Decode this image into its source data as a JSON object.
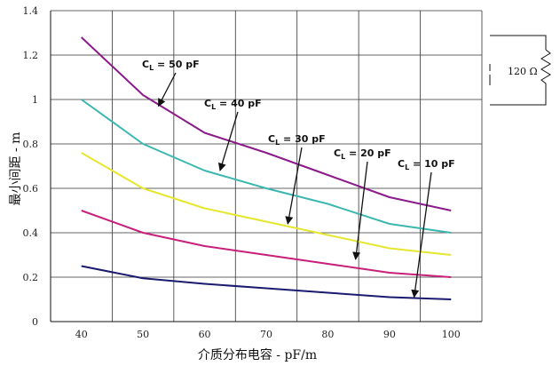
{
  "chart_data": {
    "type": "line",
    "title": "",
    "xlabel": "介质分布电容 - pF/m",
    "ylabel": "最小间距 - m",
    "x": [
      40,
      50,
      60,
      70,
      80,
      90,
      100
    ],
    "x_ticks": [
      40,
      50,
      60,
      70,
      80,
      90,
      100
    ],
    "y_ticks": [
      "0",
      "0.2",
      "0.4",
      "0.6",
      "0.8",
      "1",
      "1.2",
      "1.4"
    ],
    "xlim": [
      35,
      105
    ],
    "ylim": [
      0,
      1.4
    ],
    "grid": true,
    "series": [
      {
        "name": "50 pF",
        "color": "#8b1a8b",
        "values": [
          1.28,
          1.02,
          0.85,
          0.76,
          0.66,
          0.56,
          0.5
        ]
      },
      {
        "name": "40 pF",
        "color": "#3bb7b0",
        "values": [
          1.0,
          0.8,
          0.68,
          0.6,
          0.53,
          0.44,
          0.4
        ]
      },
      {
        "name": "30 pF",
        "color": "#e6e62e",
        "values": [
          0.76,
          0.6,
          0.51,
          0.45,
          0.39,
          0.33,
          0.3
        ]
      },
      {
        "name": "20 pF",
        "color": "#c8207a",
        "values": [
          0.5,
          0.4,
          0.34,
          0.3,
          0.26,
          0.22,
          0.2
        ]
      },
      {
        "name": "10 pF",
        "color": "#1a1a6e",
        "values": [
          0.25,
          0.195,
          0.17,
          0.15,
          0.13,
          0.11,
          0.1
        ]
      }
    ],
    "annotations": [
      {
        "prefix": "C",
        "sub": "L",
        "text": " = 50 pF",
        "arrow_to": [
          52.5,
          0.97
        ]
      },
      {
        "prefix": "C",
        "sub": "L",
        "text": " = 40 pF",
        "arrow_to": [
          62.5,
          0.68
        ]
      },
      {
        "prefix": "C",
        "sub": "L",
        "text": " = 30 pF",
        "arrow_to": [
          73.5,
          0.44
        ]
      },
      {
        "prefix": "C",
        "sub": "L",
        "text": " = 20 pF",
        "arrow_to": [
          84.5,
          0.28
        ]
      },
      {
        "prefix": "C",
        "sub": "L",
        "text": " = 10 pF",
        "arrow_to": [
          94,
          0.11
        ]
      }
    ]
  },
  "circuit": {
    "resistor_label": "120 Ω"
  }
}
